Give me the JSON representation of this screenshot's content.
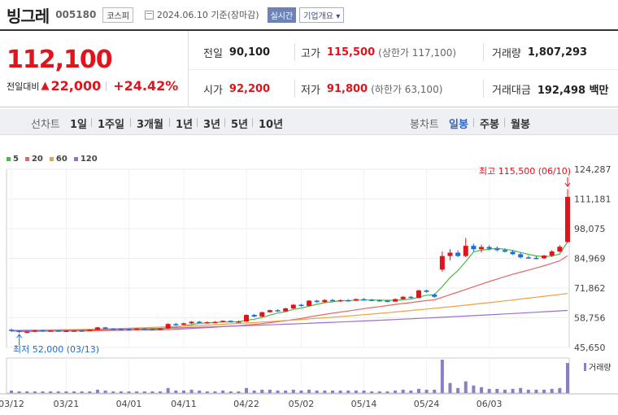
{
  "header": {
    "name": "빙그레",
    "code": "005180",
    "market": "코스피",
    "date": "2024.06.10 기준(장마감)",
    "realtime": "실시간",
    "company": "기업개요"
  },
  "price": {
    "current": "112,100",
    "compare_label": "전일대비",
    "change": "22,000",
    "rate": "+24.42%"
  },
  "stats": {
    "prev_label": "전일",
    "prev": "90,100",
    "high_label": "고가",
    "high": "115,500",
    "upper_limit": "(상한가 117,100)",
    "volume_label": "거래량",
    "volume": "1,807,293",
    "open_label": "시가",
    "open": "92,200",
    "low_label": "저가",
    "low": "91,800",
    "lower_limit": "(하한가 63,100)",
    "amount_label": "거래대금",
    "amount": "192,498 백만"
  },
  "toolbar": {
    "line_label": "선차트",
    "line_items": [
      "1일",
      "1주일",
      "3개월",
      "1년",
      "3년",
      "5년",
      "10년"
    ],
    "candle_label": "봉차트",
    "candle_items": [
      "일봉",
      "주봉",
      "월봉"
    ],
    "active_candle": "일봉"
  },
  "colors": {
    "up": "#e0141b",
    "down": "#1b6fd8",
    "ma5": "#4cb848",
    "ma20": "#e96565",
    "ma60": "#f0a040",
    "ma120": "#9b6fd0"
  },
  "chart_data": {
    "type": "candlestick",
    "legend": [
      "5",
      "20",
      "60",
      "120"
    ],
    "y_ticks": [
      "124,287",
      "111,181",
      "98,075",
      "84,969",
      "71,862",
      "58,756",
      "45,650"
    ],
    "ylim": [
      45650,
      124287
    ],
    "x_ticks": [
      "03/12",
      "03/21",
      "04/01",
      "04/11",
      "04/22",
      "05/02",
      "05/14",
      "05/24",
      "06/03"
    ],
    "high_annotation": "최고 115,500 (06/10)",
    "low_annotation": "최저 52,000 (03/13)",
    "volume_label": "거래량",
    "candles": [
      {
        "o": 53500,
        "h": 54000,
        "l": 52500,
        "c": 53000
      },
      {
        "o": 53000,
        "h": 53200,
        "l": 52000,
        "c": 52500
      },
      {
        "o": 52500,
        "h": 53000,
        "l": 52200,
        "c": 52600
      },
      {
        "o": 52600,
        "h": 53400,
        "l": 52400,
        "c": 53200
      },
      {
        "o": 53200,
        "h": 53500,
        "l": 52700,
        "c": 52900
      },
      {
        "o": 52900,
        "h": 53300,
        "l": 52600,
        "c": 53100
      },
      {
        "o": 53100,
        "h": 53400,
        "l": 52800,
        "c": 52900
      },
      {
        "o": 52900,
        "h": 53200,
        "l": 52600,
        "c": 53000
      },
      {
        "o": 53000,
        "h": 53300,
        "l": 52700,
        "c": 53100
      },
      {
        "o": 53100,
        "h": 53400,
        "l": 52800,
        "c": 53000
      },
      {
        "o": 53000,
        "h": 53600,
        "l": 52900,
        "c": 53400
      },
      {
        "o": 53400,
        "h": 54800,
        "l": 53300,
        "c": 54500
      },
      {
        "o": 54500,
        "h": 54700,
        "l": 53600,
        "c": 53900
      },
      {
        "o": 53900,
        "h": 54200,
        "l": 53500,
        "c": 53800
      },
      {
        "o": 53800,
        "h": 54100,
        "l": 53400,
        "c": 53700
      },
      {
        "o": 53700,
        "h": 54000,
        "l": 53300,
        "c": 53600
      },
      {
        "o": 53600,
        "h": 54200,
        "l": 53400,
        "c": 54000
      },
      {
        "o": 54000,
        "h": 54300,
        "l": 53600,
        "c": 53800
      },
      {
        "o": 53800,
        "h": 54000,
        "l": 53300,
        "c": 53500
      },
      {
        "o": 53500,
        "h": 54100,
        "l": 53300,
        "c": 54000
      },
      {
        "o": 54000,
        "h": 56300,
        "l": 53800,
        "c": 56000
      },
      {
        "o": 56000,
        "h": 56500,
        "l": 55200,
        "c": 55600
      },
      {
        "o": 55600,
        "h": 56600,
        "l": 55400,
        "c": 56300
      },
      {
        "o": 56300,
        "h": 57300,
        "l": 56000,
        "c": 57000
      },
      {
        "o": 57000,
        "h": 57400,
        "l": 56300,
        "c": 56600
      },
      {
        "o": 56600,
        "h": 57200,
        "l": 56200,
        "c": 56800
      },
      {
        "o": 56800,
        "h": 57300,
        "l": 56400,
        "c": 56900
      },
      {
        "o": 56900,
        "h": 57600,
        "l": 56700,
        "c": 57400
      },
      {
        "o": 57400,
        "h": 57600,
        "l": 56600,
        "c": 56800
      },
      {
        "o": 56800,
        "h": 57500,
        "l": 56600,
        "c": 57100
      },
      {
        "o": 57100,
        "h": 60300,
        "l": 57000,
        "c": 60000
      },
      {
        "o": 60000,
        "h": 60500,
        "l": 59000,
        "c": 59300
      },
      {
        "o": 59300,
        "h": 61500,
        "l": 59100,
        "c": 61200
      },
      {
        "o": 61200,
        "h": 62400,
        "l": 61000,
        "c": 62100
      },
      {
        "o": 62100,
        "h": 62500,
        "l": 61300,
        "c": 61600
      },
      {
        "o": 61600,
        "h": 63200,
        "l": 61400,
        "c": 62900
      },
      {
        "o": 62900,
        "h": 64800,
        "l": 62700,
        "c": 64500
      },
      {
        "o": 64500,
        "h": 64900,
        "l": 63600,
        "c": 64000
      },
      {
        "o": 64000,
        "h": 66600,
        "l": 63800,
        "c": 66300
      },
      {
        "o": 66300,
        "h": 66700,
        "l": 65300,
        "c": 65700
      },
      {
        "o": 65700,
        "h": 67000,
        "l": 65200,
        "c": 66600
      },
      {
        "o": 66600,
        "h": 67100,
        "l": 65900,
        "c": 66300
      },
      {
        "o": 66300,
        "h": 66900,
        "l": 65800,
        "c": 66500
      },
      {
        "o": 66500,
        "h": 67000,
        "l": 66000,
        "c": 66300
      },
      {
        "o": 66300,
        "h": 67200,
        "l": 66100,
        "c": 67000
      },
      {
        "o": 67000,
        "h": 67400,
        "l": 66400,
        "c": 66700
      },
      {
        "o": 66700,
        "h": 67100,
        "l": 66200,
        "c": 66500
      },
      {
        "o": 66500,
        "h": 66900,
        "l": 66000,
        "c": 66300
      },
      {
        "o": 66300,
        "h": 66600,
        "l": 65600,
        "c": 65900
      },
      {
        "o": 65900,
        "h": 67300,
        "l": 65700,
        "c": 67000
      },
      {
        "o": 67000,
        "h": 68300,
        "l": 66800,
        "c": 68000
      },
      {
        "o": 68000,
        "h": 68400,
        "l": 67200,
        "c": 67500
      },
      {
        "o": 67500,
        "h": 71200,
        "l": 67300,
        "c": 70800
      },
      {
        "o": 70800,
        "h": 71200,
        "l": 69800,
        "c": 70200
      },
      {
        "o": 69000,
        "h": 69500,
        "l": 67500,
        "c": 68000
      },
      {
        "o": 80000,
        "h": 88000,
        "l": 79000,
        "c": 86000
      },
      {
        "o": 86000,
        "h": 89000,
        "l": 84000,
        "c": 87500
      },
      {
        "o": 87500,
        "h": 88500,
        "l": 85500,
        "c": 86000
      },
      {
        "o": 86000,
        "h": 94000,
        "l": 85500,
        "c": 90500
      },
      {
        "o": 90500,
        "h": 91500,
        "l": 88000,
        "c": 89000
      },
      {
        "o": 89000,
        "h": 91000,
        "l": 87500,
        "c": 90000
      },
      {
        "o": 90000,
        "h": 90800,
        "l": 88500,
        "c": 89200
      },
      {
        "o": 89200,
        "h": 90200,
        "l": 88000,
        "c": 88600
      },
      {
        "o": 88600,
        "h": 89400,
        "l": 87500,
        "c": 87900
      },
      {
        "o": 87900,
        "h": 88600,
        "l": 86500,
        "c": 86800
      },
      {
        "o": 86800,
        "h": 87600,
        "l": 85000,
        "c": 85400
      },
      {
        "o": 85400,
        "h": 86200,
        "l": 84800,
        "c": 85200
      },
      {
        "o": 85200,
        "h": 86000,
        "l": 84500,
        "c": 85000
      },
      {
        "o": 85000,
        "h": 86500,
        "l": 84600,
        "c": 86200
      },
      {
        "o": 86200,
        "h": 88600,
        "l": 85500,
        "c": 88000
      },
      {
        "o": 88000,
        "h": 90800,
        "l": 87600,
        "c": 90100
      },
      {
        "o": 92200,
        "h": 115500,
        "l": 91800,
        "c": 112100
      }
    ],
    "volume": [
      3,
      2,
      2,
      2,
      2,
      2,
      2,
      2,
      2,
      2,
      2,
      4,
      3,
      2,
      2,
      2,
      2,
      2,
      2,
      2,
      6,
      3,
      3,
      4,
      3,
      2,
      2,
      3,
      2,
      2,
      6,
      3,
      4,
      4,
      3,
      3,
      4,
      3,
      4,
      3,
      3,
      3,
      3,
      3,
      3,
      3,
      2,
      2,
      2,
      3,
      4,
      3,
      5,
      4,
      4,
      40,
      12,
      6,
      14,
      9,
      7,
      5,
      5,
      4,
      5,
      6,
      4,
      4,
      4,
      5,
      6,
      36
    ],
    "x_tick_index": [
      0,
      7,
      15,
      22,
      30,
      37,
      45,
      53,
      61
    ]
  }
}
